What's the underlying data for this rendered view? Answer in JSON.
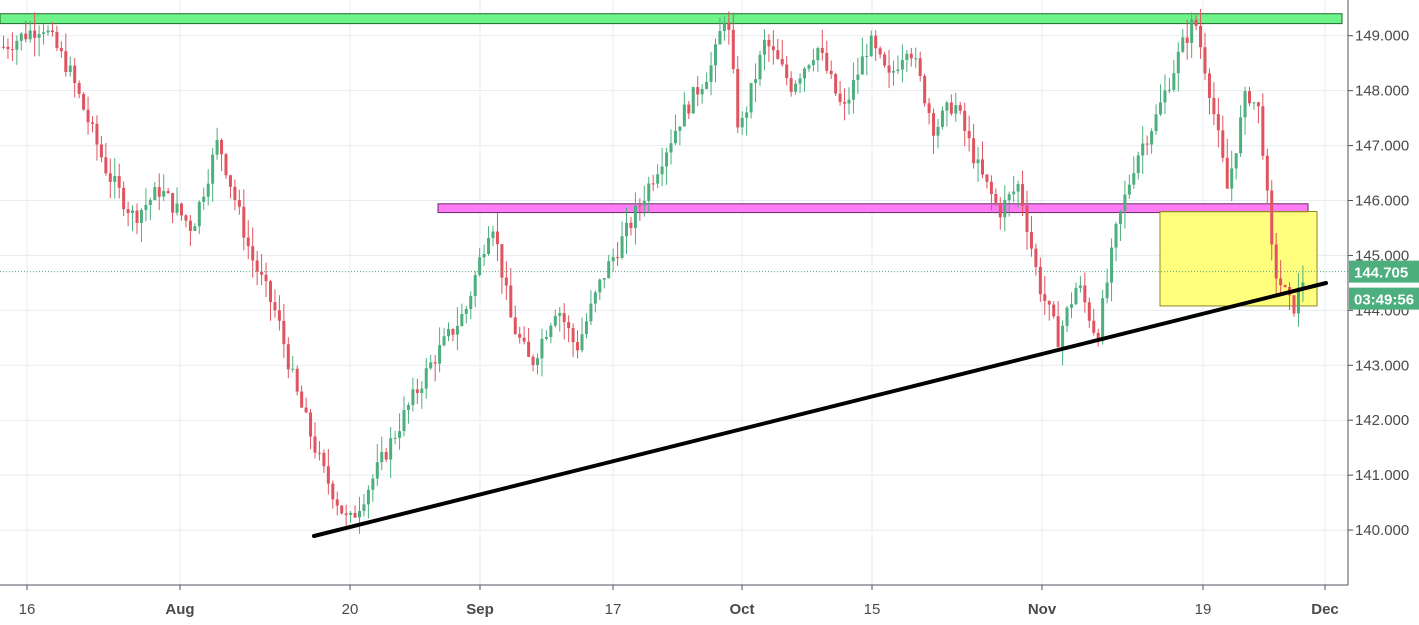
{
  "chart_data": {
    "type": "candlestick",
    "instrument_hint": "",
    "y_axis": {
      "range": [
        139.0,
        149.65
      ],
      "ticks": [
        "140.000",
        "141.000",
        "142.000",
        "143.000",
        "144.000",
        "145.000",
        "146.000",
        "147.000",
        "148.000",
        "149.000"
      ],
      "tick_values": [
        140,
        141,
        142,
        143,
        144,
        145,
        146,
        147,
        148,
        149
      ],
      "position": "right"
    },
    "x_axis": {
      "ticks": [
        {
          "label": "16",
          "bold": false
        },
        {
          "label": "Aug",
          "bold": true
        },
        {
          "label": "20",
          "bold": false
        },
        {
          "label": "Sep",
          "bold": true
        },
        {
          "label": "17",
          "bold": false
        },
        {
          "label": "Oct",
          "bold": true
        },
        {
          "label": "15",
          "bold": false
        },
        {
          "label": "Nov",
          "bold": true
        },
        {
          "label": "19",
          "bold": false
        },
        {
          "label": "Dec",
          "bold": true
        }
      ]
    },
    "grid": true,
    "current_price": {
      "label": "144.705",
      "value": 144.705,
      "color": "#4caf7d"
    },
    "countdown": {
      "label": "03:49:56",
      "color": "#4caf7d"
    },
    "colors": {
      "up": "#4caf7d",
      "down": "#e0535f",
      "trendline": "#000000"
    },
    "price_path": [
      [
        0,
        148.8
      ],
      [
        0.03,
        149.2
      ],
      [
        0.05,
        148.4
      ],
      [
        0.08,
        146.5
      ],
      [
        0.1,
        145.7
      ],
      [
        0.12,
        146.2
      ],
      [
        0.145,
        145.5
      ],
      [
        0.165,
        147.1
      ],
      [
        0.19,
        145.0
      ],
      [
        0.21,
        143.9
      ],
      [
        0.225,
        142.5
      ],
      [
        0.245,
        141.1
      ],
      [
        0.265,
        140.1
      ],
      [
        0.285,
        141.0
      ],
      [
        0.31,
        142.2
      ],
      [
        0.33,
        143.1
      ],
      [
        0.355,
        144.0
      ],
      [
        0.375,
        145.7
      ],
      [
        0.39,
        143.8
      ],
      [
        0.405,
        143.0
      ],
      [
        0.425,
        144.1
      ],
      [
        0.44,
        143.3
      ],
      [
        0.46,
        144.6
      ],
      [
        0.48,
        145.5
      ],
      [
        0.5,
        146.5
      ],
      [
        0.52,
        147.5
      ],
      [
        0.545,
        148.5
      ],
      [
        0.555,
        149.5
      ],
      [
        0.565,
        147.2
      ],
      [
        0.585,
        148.9
      ],
      [
        0.605,
        148.1
      ],
      [
        0.625,
        148.8
      ],
      [
        0.645,
        147.6
      ],
      [
        0.665,
        148.9
      ],
      [
        0.68,
        148.2
      ],
      [
        0.695,
        148.9
      ],
      [
        0.715,
        147.3
      ],
      [
        0.73,
        147.8
      ],
      [
        0.75,
        146.5
      ],
      [
        0.765,
        145.8
      ],
      [
        0.78,
        146.3
      ],
      [
        0.795,
        144.5
      ],
      [
        0.81,
        143.5
      ],
      [
        0.825,
        144.5
      ],
      [
        0.84,
        143.5
      ],
      [
        0.855,
        145.5
      ],
      [
        0.87,
        146.8
      ],
      [
        0.885,
        147.5
      ],
      [
        0.905,
        148.8
      ],
      [
        0.915,
        149.3
      ],
      [
        0.925,
        148.2
      ],
      [
        0.94,
        146.2
      ],
      [
        0.955,
        148.0
      ],
      [
        0.965,
        147.6
      ],
      [
        0.975,
        144.8
      ],
      [
        0.99,
        144.0
      ],
      [
        1.0,
        144.7
      ]
    ],
    "annotations": [
      {
        "name": "resistance-zone-top",
        "kind": "horizontal-band",
        "from": 149.22,
        "to": 149.4,
        "color": "#6ef28a"
      },
      {
        "name": "resistance-zone-mid",
        "kind": "horizontal-band",
        "from": 145.78,
        "to": 145.94,
        "color": "#ff7cf4"
      },
      {
        "name": "consolidation-box",
        "kind": "rectangle",
        "price_from": 144.08,
        "price_to": 145.8,
        "color": "#ffff66"
      },
      {
        "name": "support-trendline",
        "kind": "line",
        "color": "#000000"
      }
    ]
  }
}
